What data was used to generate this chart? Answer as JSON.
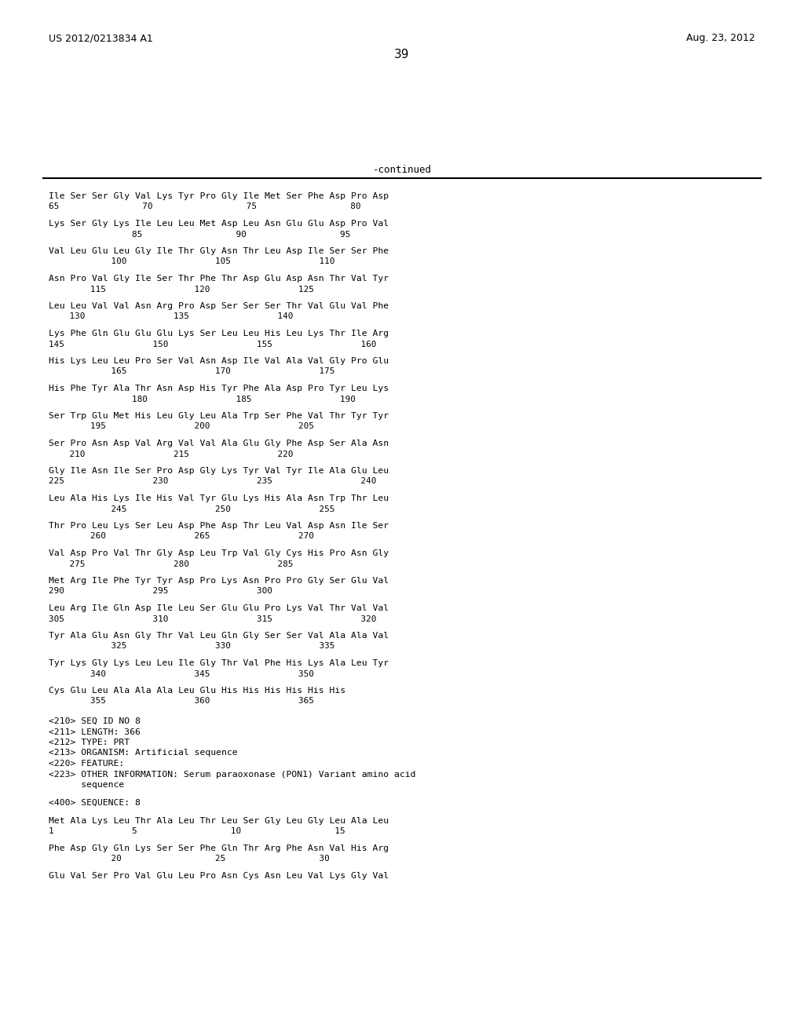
{
  "header_left": "US 2012/0213834 A1",
  "header_right": "Aug. 23, 2012",
  "page_number": "39",
  "continued_label": "-continued",
  "background_color": "#ffffff",
  "text_color": "#000000",
  "sequences": [
    [
      "Ile Ser Ser Gly Val Lys Tyr Pro Gly Ile Met Ser Phe Asp Pro Asp",
      "65                70                  75                  80"
    ],
    [
      "Lys Ser Gly Lys Ile Leu Leu Met Asp Leu Asn Glu Glu Asp Pro Val",
      "                85                  90                  95"
    ],
    [
      "Val Leu Glu Leu Gly Ile Thr Gly Asn Thr Leu Asp Ile Ser Ser Phe",
      "            100                 105                 110"
    ],
    [
      "Asn Pro Val Gly Ile Ser Thr Phe Thr Asp Glu Asp Asn Thr Val Tyr",
      "        115                 120                 125"
    ],
    [
      "Leu Leu Val Val Asn Arg Pro Asp Ser Ser Ser Thr Val Glu Val Phe",
      "    130                 135                 140"
    ],
    [
      "Lys Phe Gln Glu Glu Glu Lys Ser Leu Leu His Leu Lys Thr Ile Arg",
      "145                 150                 155                 160"
    ],
    [
      "His Lys Leu Leu Pro Ser Val Asn Asp Ile Val Ala Val Gly Pro Glu",
      "            165                 170                 175"
    ],
    [
      "His Phe Tyr Ala Thr Asn Asp His Tyr Phe Ala Asp Pro Tyr Leu Lys",
      "                180                 185                 190"
    ],
    [
      "Ser Trp Glu Met His Leu Gly Leu Ala Trp Ser Phe Val Thr Tyr Tyr",
      "        195                 200                 205"
    ],
    [
      "Ser Pro Asn Asp Val Arg Val Val Ala Glu Gly Phe Asp Ser Ala Asn",
      "    210                 215                 220"
    ],
    [
      "Gly Ile Asn Ile Ser Pro Asp Gly Lys Tyr Val Tyr Ile Ala Glu Leu",
      "225                 230                 235                 240"
    ],
    [
      "Leu Ala His Lys Ile His Val Tyr Glu Lys His Ala Asn Trp Thr Leu",
      "            245                 250                 255"
    ],
    [
      "Thr Pro Leu Lys Ser Leu Asp Phe Asp Thr Leu Val Asp Asn Ile Ser",
      "        260                 265                 270"
    ],
    [
      "Val Asp Pro Val Thr Gly Asp Leu Trp Val Gly Cys His Pro Asn Gly",
      "    275                 280                 285"
    ],
    [
      "Met Arg Ile Phe Tyr Tyr Asp Pro Lys Asn Pro Pro Gly Ser Glu Val",
      "290                 295                 300"
    ],
    [
      "Leu Arg Ile Gln Asp Ile Leu Ser Glu Glu Pro Lys Val Thr Val Val",
      "305                 310                 315                 320"
    ],
    [
      "Tyr Ala Glu Asn Gly Thr Val Leu Gln Gly Ser Ser Val Ala Ala Val",
      "            325                 330                 335"
    ],
    [
      "Tyr Lys Gly Lys Leu Leu Ile Gly Thr Val Phe His Lys Ala Leu Tyr",
      "        340                 345                 350"
    ],
    [
      "Cys Glu Leu Ala Ala Ala Leu Glu His His His His His His",
      "        355                 360                 365"
    ]
  ],
  "meta_lines": [
    "<210> SEQ ID NO 8",
    "<211> LENGTH: 366",
    "<212> TYPE: PRT",
    "<213> ORGANISM: Artificial sequence",
    "<220> FEATURE:",
    "<223> OTHER INFORMATION: Serum paraoxonase (PON1) Variant amino acid",
    "      sequence"
  ],
  "sequences2": [
    [
      "Met Ala Lys Leu Thr Ala Leu Thr Leu Ser Gly Leu Gly Leu Ala Leu",
      "1               5                  10                  15"
    ],
    [
      "Phe Asp Gly Gln Lys Ser Ser Phe Gln Thr Arg Phe Asn Val His Arg",
      "            20                  25                  30"
    ],
    [
      "Glu Val Ser Pro Val Glu Leu Pro Asn Cys Asn Leu Val Lys Gly Val",
      ""
    ]
  ]
}
